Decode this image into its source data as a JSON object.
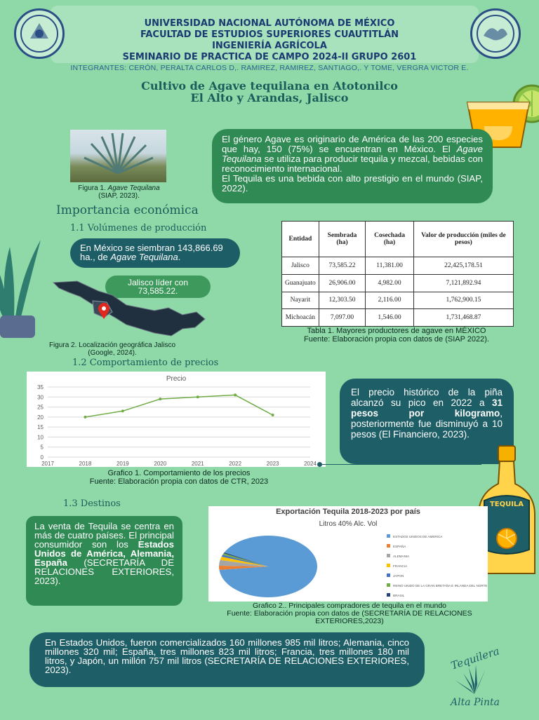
{
  "header": {
    "line1": "UNIVERSIDAD NACIONAL AUTÓNOMA DE MÉXICO",
    "line2": "FACULTAD DE ESTUDIOS SUPERIORES CUAUTITLÁN",
    "line3": "INGENIERÍA AGRÍCOLA",
    "line4": "SEMINARIO DE PRACTICA DE CAMPO  2024-II GRUPO 2601",
    "integrantes": "INTEGRANTES: CERÓN, PERALTA CARLOS D,. RAMIREZ, RAMIREZ, SANTIAGO,. Y TOME, VERGRA VICTOR E."
  },
  "title": {
    "line1": "Cultivo de Agave tequilana en Atotonilco",
    "line2": "El Alto y Arandas, Jalisco"
  },
  "intro": {
    "fig1_caption_a": "Figura 1.",
    "fig1_caption_b": "Agave Tequilana",
    "fig1_caption_c": "(SIAP, 2023).",
    "p1_a": "El género Agave es originario de América de las 200 especies que hay,  150 (75%) se encuentran en México. El ",
    "p1_b": "Agave Tequilana",
    "p1_c": " se utiliza para producir tequila y mezcal, bebidas con reconocimiento internacional.",
    "p2": "El Tequila es una bebida con alto prestigio en el mundo (SIAP, 2022)."
  },
  "importancia": {
    "heading": "Importancia económica",
    "sub1": "1.1 Volúmenes de producción",
    "bubble1_a": "En México se siembran 143,866.69 ha., de ",
    "bubble1_b": "Agave Tequilana",
    "bubble1_c": ".",
    "bubble2": "Jalisco líder con 73,585.22.",
    "fig2_caption": "Figura 2. Localización geográfica Jalisco (Google, 2024)."
  },
  "table1": {
    "headers": [
      "Entidad",
      "Sembrada (ha)",
      "Cosechada (ha)",
      "Valor de producción (miles de pesos)"
    ],
    "rows": [
      [
        "Jalisco",
        "73,585.22",
        "11,381.00",
        "22,425,178.51"
      ],
      [
        "Guanajuato",
        "26,906.00",
        "4,982.00",
        "7,121,892.94"
      ],
      [
        "Nayarit",
        "12,303.50",
        "2,116.00",
        "1,762,900.15"
      ],
      [
        "Michoacán",
        "7,097.00",
        "1,546.00",
        "1,731,468.87"
      ]
    ],
    "caption1": "Tabla 1. Mayores productores de agave en MÉXICO",
    "caption2": "Fuente: Elaboración propia con datos de (SIAP 2022)."
  },
  "precios": {
    "sub": "1.2  Comportamiento de precios",
    "bubble_a": "El precio histórico  de la piña alcanzó su pico en 2022 a ",
    "bubble_b": "31 pesos por kilogramo",
    "bubble_c": ", posteriormente fue disminuyó a 10 pesos (El Financiero, 2023).",
    "caption1": "Grafico 1. Comportamiento de los precios",
    "caption2": "Fuente: Elaboración propia con datos de CTR, 2023"
  },
  "destinos": {
    "sub": "1.3  Destinos",
    "bubble_a": "La venta de Tequila se centra en más de cuatro países. El principal consumidor son los ",
    "bubble_b": "Estados Unidos de América, Alemania, España",
    "bubble_c": " (SECRETARÍA DE RELACIONES EXTERIORES, 2023).",
    "caption1": "Grafico 2.. Principales compradores de tequila en el mundo",
    "caption2": "Fuente: Elaboración propia con datos de (SECRETARÍA DE RELACIONES EXTERIORES,2023)",
    "bottom_bubble": "En Estados Unidos, fueron comercializados 160 millones 985 mil litros; Alemania, cinco millones 320 mil; España, tres millones 823 mil litros; Francia, tres millones 180 mil litros, y Japón, un millón 757 mil litros (SECRETARÍA DE RELACIONES EXTERIORES, 2023)."
  },
  "logo": {
    "top": "Tequilera",
    "bottom": "Alta Pinta"
  },
  "bottle_label": "TEQUILA",
  "colors": {
    "background": "#8fd9a8",
    "header_text": "#1c3a72",
    "bubble_green": "#2f8a54",
    "bubble_dark": "#1d5d66",
    "title": "#1b5c5a"
  },
  "chart_data": [
    {
      "type": "line",
      "title": "Precio",
      "x": [
        2018,
        2019,
        2020,
        2021,
        2022,
        2023
      ],
      "series": [
        {
          "values": [
            20,
            23,
            29,
            30,
            31,
            21
          ]
        }
      ],
      "xlim": [
        2017,
        2024
      ],
      "ylim": [
        0,
        35
      ],
      "yticks": [
        0,
        5,
        10,
        15,
        20,
        25,
        30,
        35
      ],
      "xticks": [
        2017,
        2018,
        2019,
        2020,
        2021,
        2022,
        2023,
        2024
      ],
      "xlabel": "",
      "ylabel": "",
      "grid": true,
      "color": "#70ad47"
    },
    {
      "type": "pie",
      "title": "Exportación Tequila 2018-2023 por país",
      "subtitle": "Litros 40% Alc. Vol",
      "categories": [
        "ESTADOS UNIDOS DE AMERICA",
        "ESPAÑA",
        "ALEMANIA",
        "FRANCIA",
        "JAPON",
        "REINO UNIDO DE LA GRAN BRETAÑA E IRLANDA DEL NORTE",
        "BRASIL"
      ],
      "values": [
        160985,
        3823,
        5320,
        3180,
        1757,
        1500,
        900
      ],
      "colors": [
        "#5b9bd5",
        "#ed7d31",
        "#a5a5a5",
        "#ffc000",
        "#4472c4",
        "#70ad47",
        "#264478"
      ],
      "legend": "right"
    }
  ]
}
